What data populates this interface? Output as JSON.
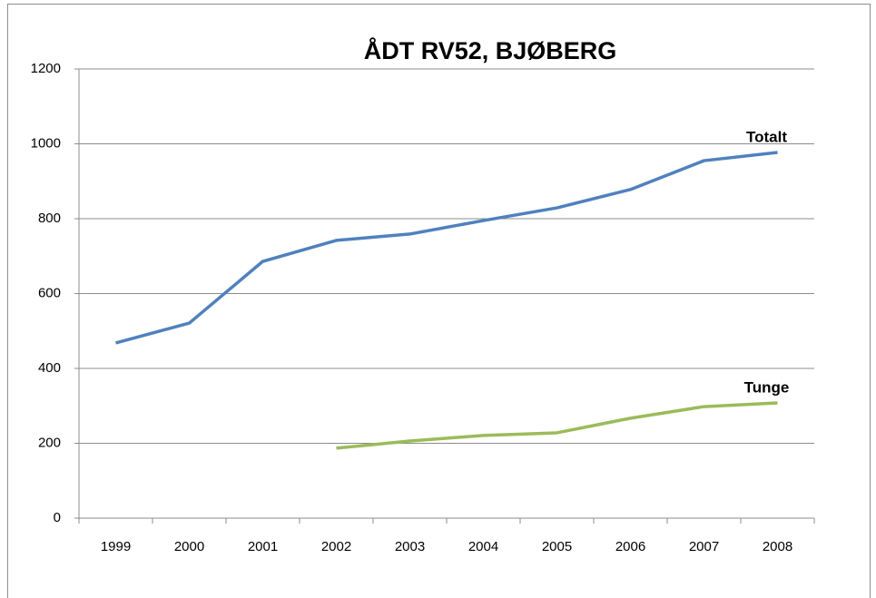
{
  "chart_data": {
    "type": "line",
    "title": "ÅDT RV52, BJØBERG",
    "categories": [
      "1999",
      "2000",
      "2001",
      "2002",
      "2003",
      "2004",
      "2005",
      "2006",
      "2007",
      "2008"
    ],
    "series": [
      {
        "name": "Totalt",
        "color": "#4f81bd",
        "values": [
          468,
          521,
          686,
          742,
          759,
          795,
          829,
          878,
          955,
          977
        ]
      },
      {
        "name": "Tunge",
        "color": "#9bbb59",
        "values": [
          null,
          null,
          null,
          187,
          206,
          221,
          228,
          267,
          298,
          308
        ]
      }
    ],
    "ylim": [
      0,
      1200
    ],
    "yticks": [
      0,
      200,
      400,
      600,
      800,
      1000,
      1200
    ],
    "grid": true
  }
}
